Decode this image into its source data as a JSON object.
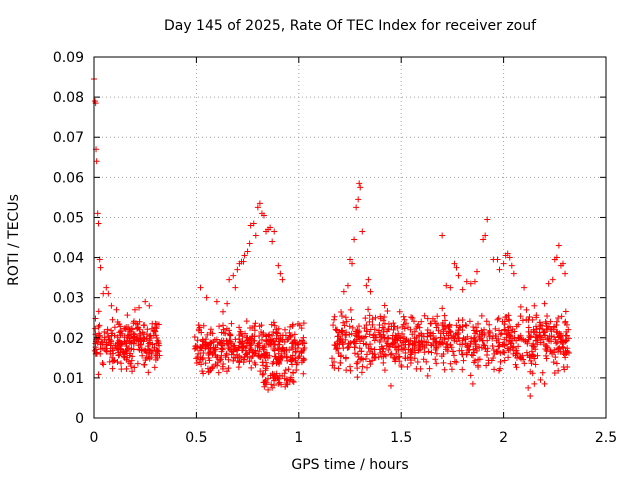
{
  "chart_data": {
    "type": "scatter",
    "title": "Day 145 of 2025, Rate Of TEC Index for receiver zouf",
    "xlabel": "GPS time / hours",
    "ylabel": "ROTI / TECUs",
    "xlim": [
      0,
      2.5
    ],
    "ylim": [
      0,
      0.09
    ],
    "xticks": [
      0,
      0.5,
      1,
      1.5,
      2,
      2.5
    ],
    "xtick_labels": [
      "0",
      "0.5",
      "1",
      "1.5",
      "2",
      "2.5"
    ],
    "yticks": [
      0,
      0.01,
      0.02,
      0.03,
      0.04,
      0.05,
      0.06,
      0.07,
      0.08,
      0.09
    ],
    "ytick_labels": [
      "0",
      "0.01",
      "0.02",
      "0.03",
      "0.04",
      "0.05",
      "0.06",
      "0.07",
      "0.08",
      "0.09"
    ],
    "grid": true,
    "marker": "+",
    "color": "#ff0000",
    "series": [
      {
        "name": "ROTI",
        "points": [
          [
            0.0,
            0.0845
          ],
          [
            0.005,
            0.079
          ],
          [
            0.008,
            0.0785
          ],
          [
            0.01,
            0.067
          ],
          [
            0.013,
            0.064
          ],
          [
            0.018,
            0.051
          ],
          [
            0.022,
            0.0485
          ],
          [
            0.028,
            0.0395
          ],
          [
            0.032,
            0.0375
          ],
          [
            0.045,
            0.031
          ],
          [
            0.06,
            0.0325
          ],
          [
            0.07,
            0.031
          ],
          [
            0.085,
            0.028
          ],
          [
            0.11,
            0.027
          ],
          [
            0.2,
            0.027
          ],
          [
            0.22,
            0.0275
          ],
          [
            0.25,
            0.029
          ],
          [
            0.27,
            0.028
          ],
          [
            0.52,
            0.0325
          ],
          [
            0.55,
            0.03
          ],
          [
            0.6,
            0.029
          ],
          [
            0.63,
            0.0265
          ],
          [
            0.65,
            0.0285
          ],
          [
            0.66,
            0.0345
          ],
          [
            0.68,
            0.0355
          ],
          [
            0.69,
            0.0325
          ],
          [
            0.7,
            0.037
          ],
          [
            0.71,
            0.0385
          ],
          [
            0.72,
            0.039
          ],
          [
            0.73,
            0.039
          ],
          [
            0.735,
            0.0405
          ],
          [
            0.75,
            0.0415
          ],
          [
            0.76,
            0.0435
          ],
          [
            0.765,
            0.048
          ],
          [
            0.78,
            0.0485
          ],
          [
            0.79,
            0.0455
          ],
          [
            0.8,
            0.0525
          ],
          [
            0.81,
            0.0535
          ],
          [
            0.82,
            0.051
          ],
          [
            0.83,
            0.0505
          ],
          [
            0.84,
            0.0465
          ],
          [
            0.85,
            0.047
          ],
          [
            0.86,
            0.0475
          ],
          [
            0.87,
            0.044
          ],
          [
            0.88,
            0.0465
          ],
          [
            0.9,
            0.038
          ],
          [
            0.91,
            0.036
          ],
          [
            0.92,
            0.0345
          ],
          [
            1.22,
            0.0315
          ],
          [
            1.24,
            0.033
          ],
          [
            1.25,
            0.0395
          ],
          [
            1.26,
            0.0385
          ],
          [
            1.27,
            0.0445
          ],
          [
            1.28,
            0.0525
          ],
          [
            1.29,
            0.0545
          ],
          [
            1.295,
            0.0585
          ],
          [
            1.3,
            0.0575
          ],
          [
            1.31,
            0.0465
          ],
          [
            1.33,
            0.033
          ],
          [
            1.34,
            0.0345
          ],
          [
            1.35,
            0.0315
          ],
          [
            1.7,
            0.0455
          ],
          [
            1.72,
            0.033
          ],
          [
            1.74,
            0.0325
          ],
          [
            1.76,
            0.0385
          ],
          [
            1.77,
            0.0375
          ],
          [
            1.78,
            0.0355
          ],
          [
            1.8,
            0.032
          ],
          [
            1.82,
            0.034
          ],
          [
            1.84,
            0.0335
          ],
          [
            1.86,
            0.034
          ],
          [
            1.87,
            0.0365
          ],
          [
            1.9,
            0.0445
          ],
          [
            1.91,
            0.0455
          ],
          [
            1.92,
            0.0495
          ],
          [
            1.95,
            0.0395
          ],
          [
            1.97,
            0.0395
          ],
          [
            1.98,
            0.037
          ],
          [
            2.0,
            0.0385
          ],
          [
            2.01,
            0.0405
          ],
          [
            2.02,
            0.041
          ],
          [
            2.03,
            0.04
          ],
          [
            2.04,
            0.038
          ],
          [
            2.05,
            0.036
          ],
          [
            2.1,
            0.0325
          ],
          [
            2.15,
            0.028
          ],
          [
            2.2,
            0.0285
          ],
          [
            2.22,
            0.0335
          ],
          [
            2.24,
            0.0345
          ],
          [
            2.25,
            0.0395
          ],
          [
            2.26,
            0.04
          ],
          [
            2.27,
            0.043
          ],
          [
            2.28,
            0.038
          ],
          [
            2.29,
            0.0385
          ],
          [
            2.3,
            0.036
          ],
          [
            2.12,
            0.0075
          ],
          [
            2.13,
            0.0055
          ],
          [
            2.15,
            0.0085
          ],
          [
            2.18,
            0.0095
          ],
          [
            2.2,
            0.0085
          ],
          [
            0.85,
            0.007
          ],
          [
            0.87,
            0.0075
          ],
          [
            0.9,
            0.0085
          ],
          [
            1.45,
            0.008
          ],
          [
            1.85,
            0.0085
          ]
        ]
      }
    ],
    "bulk_clusters": [
      {
        "x_range": [
          0.0,
          0.32
        ],
        "y_range": [
          0.01,
          0.027
        ],
        "count": 260,
        "seed": 11
      },
      {
        "x_range": [
          0.49,
          1.03
        ],
        "y_range": [
          0.009,
          0.026
        ],
        "count": 420,
        "seed": 23
      },
      {
        "x_range": [
          0.82,
          1.0
        ],
        "y_range": [
          0.007,
          0.012
        ],
        "count": 40,
        "seed": 37
      },
      {
        "x_range": [
          1.16,
          2.32
        ],
        "y_range": [
          0.009,
          0.029
        ],
        "count": 780,
        "seed": 41
      }
    ]
  }
}
